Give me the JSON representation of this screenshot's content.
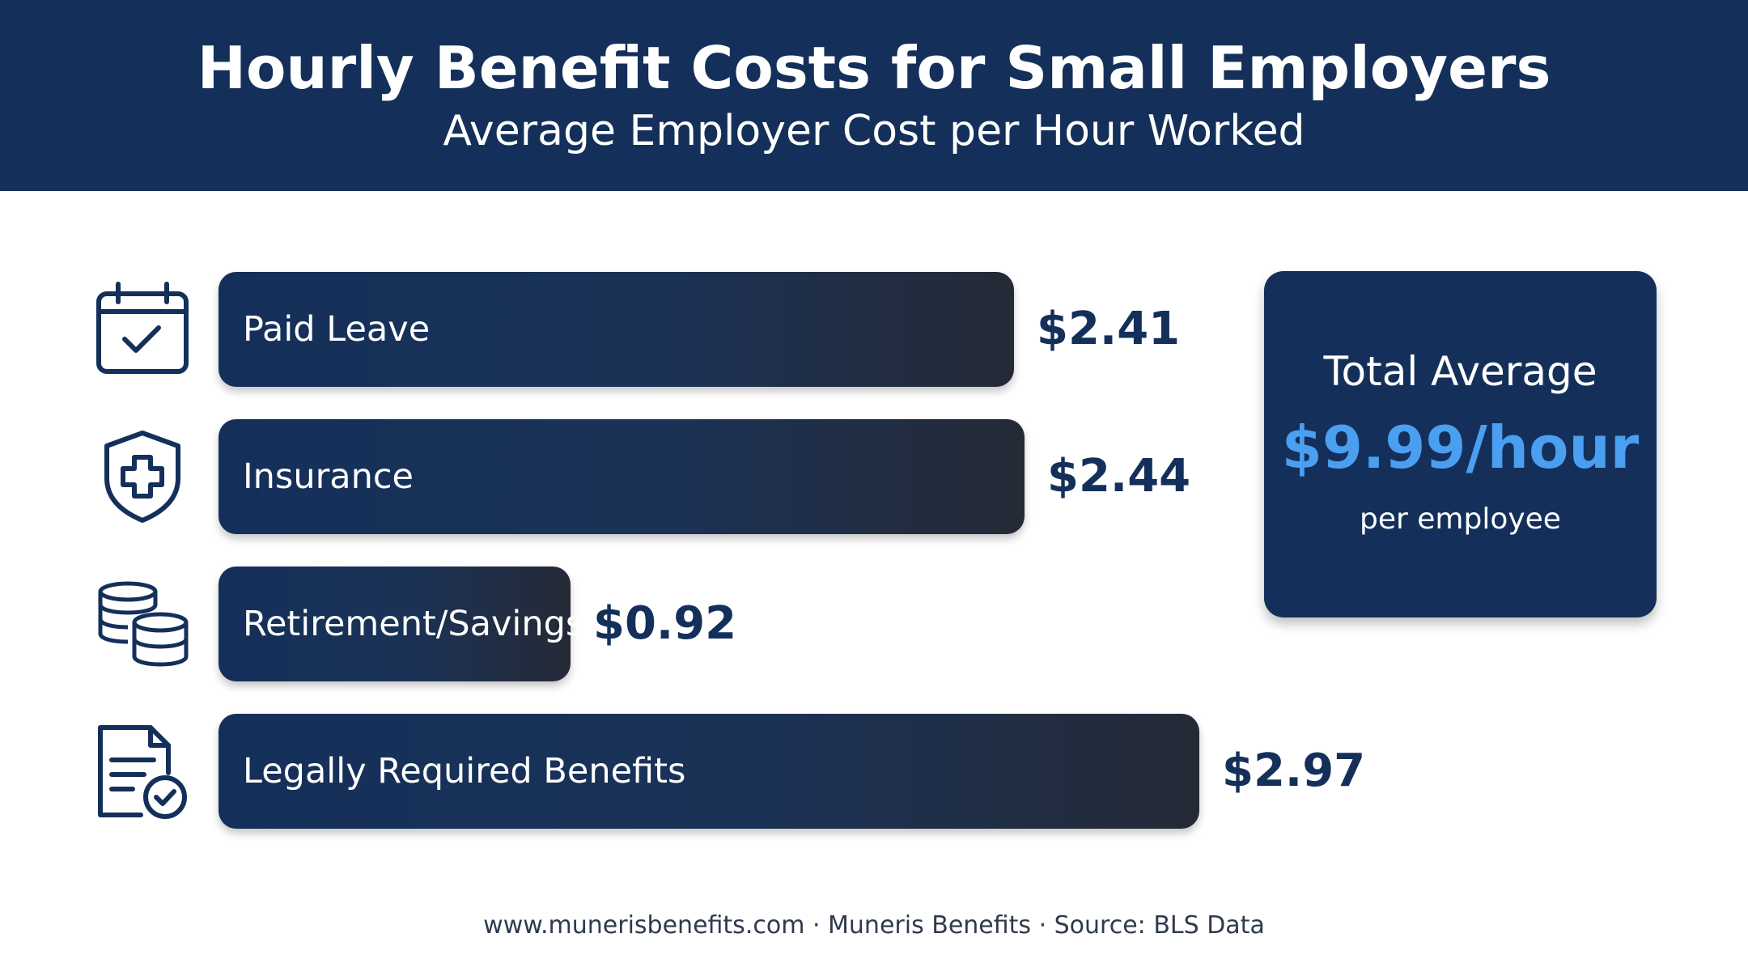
{
  "header": {
    "title": "Hourly Benefit Costs for Small Employers",
    "subtitle": "Average Employer Cost per Hour Worked"
  },
  "colors": {
    "header_bg": "#14305a",
    "bar": "#14305a",
    "accent": "#4a9ff0",
    "value_text": "#14305a"
  },
  "chart_data": {
    "type": "bar",
    "orientation": "horizontal",
    "title": "Hourly Benefit Costs for Small Employers",
    "subtitle": "Average Employer Cost per Hour Worked",
    "categories": [
      "Paid Leave",
      "Insurance",
      "Retirement/Savings",
      "Legally Required Benefits"
    ],
    "values": [
      2.41,
      2.44,
      0.92,
      2.97
    ],
    "value_labels": [
      "$2.41",
      "$2.44",
      "$0.92",
      "$2.97"
    ],
    "icons": [
      "calendar-check-icon",
      "shield-plus-icon",
      "coins-stack-icon",
      "document-check-icon"
    ],
    "xlabel": "",
    "ylabel": "",
    "grid": false,
    "legend": "none"
  },
  "total": {
    "label": "Total Average",
    "value": "$9.99/hour",
    "sub": "per employee"
  },
  "footer": {
    "text": "www.munerisbenefits.com · Muneris Benefits · Source: BLS Data"
  }
}
